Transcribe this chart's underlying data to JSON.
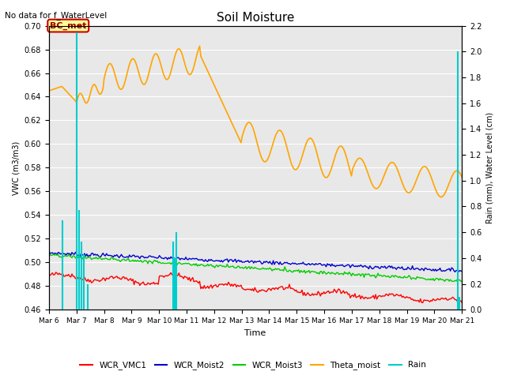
{
  "title": "Soil Moisture",
  "top_left_text": "No data for f_WaterLevel",
  "xlabel": "Time",
  "ylabel_left": "VWC (m3/m3)",
  "ylabel_right": "Rain (mm), Water Level (cm)",
  "ylim_left": [
    0.46,
    0.7
  ],
  "ylim_right": [
    0.0,
    2.2
  ],
  "yticks_left": [
    0.46,
    0.48,
    0.5,
    0.52,
    0.54,
    0.56,
    0.58,
    0.6,
    0.62,
    0.64,
    0.66,
    0.68,
    0.7
  ],
  "yticks_right": [
    0.0,
    0.2,
    0.4,
    0.6,
    0.8,
    1.0,
    1.2,
    1.4,
    1.6,
    1.8,
    2.0,
    2.2
  ],
  "bg_color": "#e8e8e8",
  "legend_entries": [
    "WCR_VMC1",
    "WCR_Moist2",
    "WCR_Moist3",
    "Theta_moist",
    "Rain"
  ],
  "legend_colors": [
    "#ff0000",
    "#0000cc",
    "#00cc00",
    "#ffa500",
    "#00cccc"
  ],
  "annotation_text": "BC_met",
  "annotation_bg": "#ffff99",
  "annotation_border": "#cc0000",
  "fig_width": 6.4,
  "fig_height": 4.8,
  "dpi": 100
}
